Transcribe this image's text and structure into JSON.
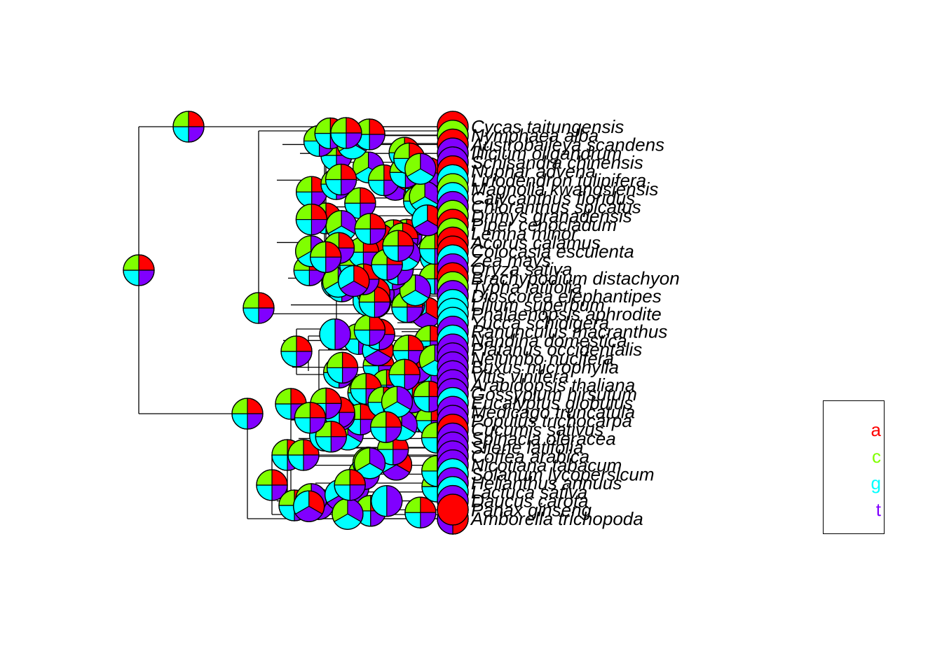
{
  "states": [
    {
      "label": "a",
      "color": "#FF0000"
    },
    {
      "label": "c",
      "color": "#80FF00"
    },
    {
      "label": "g",
      "color": "#00FFFF"
    },
    {
      "label": "t",
      "color": "#8000FF"
    }
  ],
  "tips": [
    "Cycas taitungensis",
    "Nymphaea alba",
    "Austrobaileya scandens",
    "Illicium oligandrum",
    "Schisandra chinensis",
    "Nuphar advena",
    "Liriodendron tulipifera",
    "Magnolia kwangsiensis",
    "Calycanthus floridus",
    "Chloranthus spicatus",
    "Drimys granadensis",
    "Piper cenocladum",
    "Lemna minor",
    "Acorus calamus",
    "Colocasia esculenta",
    "Zea mays",
    "Oryza sativa",
    "Brachypodium distachyon",
    "Typha latifolia",
    "Dioscorea elephantipes",
    "Lilium superbum",
    "Phalaenopsis aphrodite",
    "Yucca schidigera",
    "Ranunculus macranthus",
    "Nandina domestica",
    "Platanus occidentalis",
    "Nelumbo nucifera",
    "Buxus microphylla",
    "Vitis vinifera",
    "Arabidopsis thaliana",
    "Gossypium hirsutum",
    "Eucalyptus globulus",
    "Medicago truncatula",
    "Populus trichocarpa",
    "Cucumis sativus",
    "Spinacia oleracea",
    "Silene latifolia",
    "Coffea arabica",
    "Nicotiana tabacum",
    "Solanum lycopersicum",
    "Helianthus annuus",
    "Lactuca sativa",
    "Daucus carota",
    "Panax ginseng",
    "Amborella trichopoda"
  ],
  "legend": {
    "a": "a",
    "c": "c",
    "g": "g",
    "t": "t"
  }
}
